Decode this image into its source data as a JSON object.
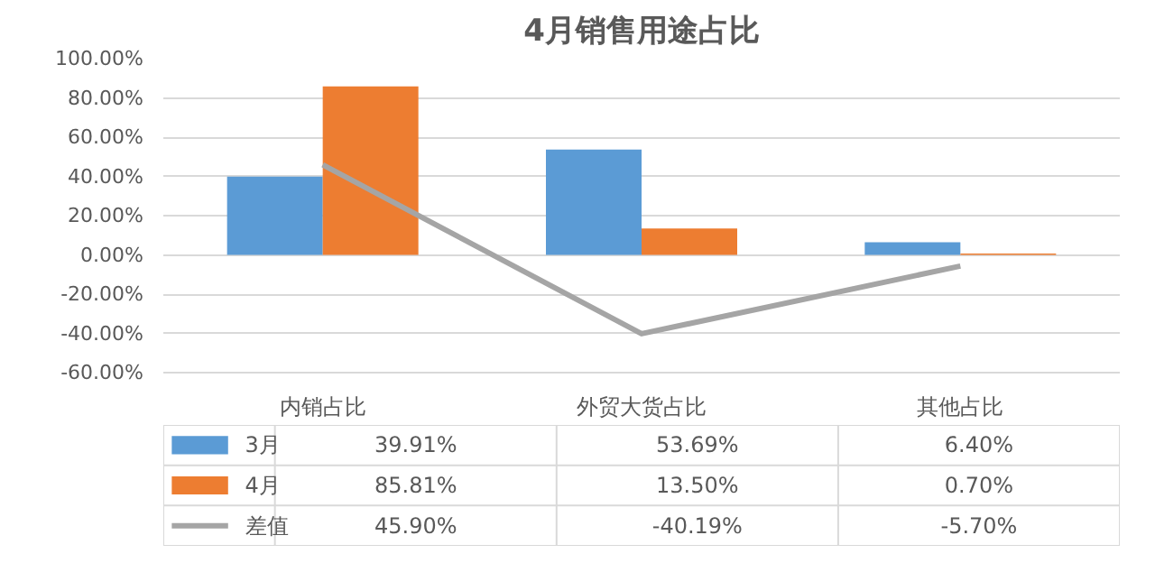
{
  "chart_data": {
    "type": "bar",
    "title": "4月销售用途占比",
    "categories": [
      "内销占比",
      "外贸大货占比",
      "其他占比"
    ],
    "series": [
      {
        "name": "3月",
        "color": "#5b9bd5",
        "values": [
          39.91,
          53.69,
          6.4
        ],
        "value_labels": [
          "39.91%",
          "53.69%",
          "6.40%"
        ]
      },
      {
        "name": "4月",
        "color": "#ed7d31",
        "values": [
          85.81,
          13.5,
          0.7
        ],
        "value_labels": [
          "85.81%",
          "13.50%",
          "0.70%"
        ]
      },
      {
        "name": "差值",
        "type": "line",
        "color": "#a5a5a5",
        "values": [
          45.9,
          -40.19,
          -5.7
        ],
        "value_labels": [
          "45.90%",
          "-40.19%",
          "-5.70%"
        ]
      }
    ],
    "ylim": [
      -60,
      100
    ],
    "yticks": [
      {
        "value": 100,
        "label": "100.00%"
      },
      {
        "value": 80,
        "label": "80.00%"
      },
      {
        "value": 60,
        "label": "60.00%"
      },
      {
        "value": 40,
        "label": "40.00%"
      },
      {
        "value": 20,
        "label": "20.00%"
      },
      {
        "value": 0,
        "label": "0.00%"
      },
      {
        "value": -20,
        "label": "-20.00%"
      },
      {
        "value": -40,
        "label": "-40.00%"
      },
      {
        "value": -60,
        "label": "-60.00%"
      }
    ],
    "grid": "y",
    "legend": "bottom"
  }
}
